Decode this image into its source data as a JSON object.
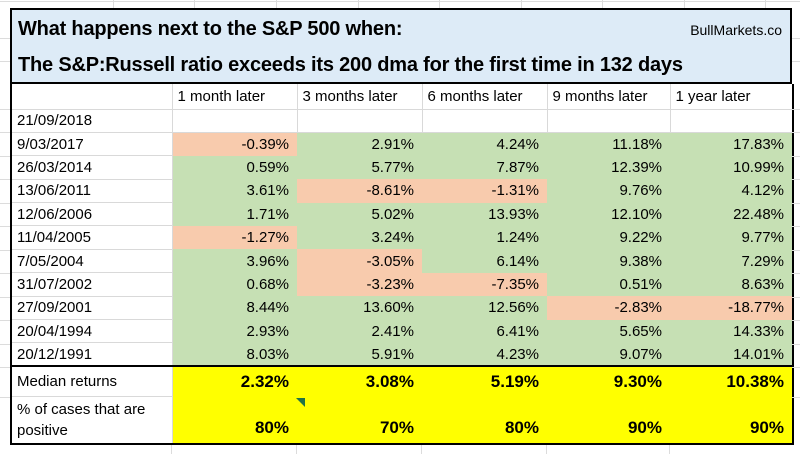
{
  "title": {
    "line1": "What happens next to the S&P 500 when:",
    "line2": "The S&P:Russell ratio exceeds its 200 dma for the first time in 132 days",
    "brand": "BullMarkets.co"
  },
  "chart_data": {
    "type": "table",
    "columns": [
      "1 month later",
      "3 months later",
      "6 months later",
      "9 months later",
      "1 year later"
    ],
    "rows": [
      {
        "date": "21/09/2018",
        "values": [
          "",
          "",
          "",
          "",
          ""
        ]
      },
      {
        "date": "9/03/2017",
        "values": [
          "-0.39%",
          "2.91%",
          "4.24%",
          "11.18%",
          "17.83%"
        ]
      },
      {
        "date": "26/03/2014",
        "values": [
          "0.59%",
          "5.77%",
          "7.87%",
          "12.39%",
          "10.99%"
        ]
      },
      {
        "date": "13/06/2011",
        "values": [
          "3.61%",
          "-8.61%",
          "-1.31%",
          "9.76%",
          "4.12%"
        ]
      },
      {
        "date": "12/06/2006",
        "values": [
          "1.71%",
          "5.02%",
          "13.93%",
          "12.10%",
          "22.48%"
        ]
      },
      {
        "date": "11/04/2005",
        "values": [
          "-1.27%",
          "3.24%",
          "1.24%",
          "9.22%",
          "9.77%"
        ]
      },
      {
        "date": "7/05/2004",
        "values": [
          "3.96%",
          "-3.05%",
          "6.14%",
          "9.38%",
          "7.29%"
        ]
      },
      {
        "date": "31/07/2002",
        "values": [
          "0.68%",
          "-3.23%",
          "-7.35%",
          "0.51%",
          "8.63%"
        ]
      },
      {
        "date": "27/09/2001",
        "values": [
          "8.44%",
          "13.60%",
          "12.56%",
          "-2.83%",
          "-18.77%"
        ]
      },
      {
        "date": "20/04/1994",
        "values": [
          "2.93%",
          "2.41%",
          "6.41%",
          "5.65%",
          "14.33%"
        ]
      },
      {
        "date": "20/12/1991",
        "values": [
          "8.03%",
          "5.91%",
          "4.23%",
          "9.07%",
          "14.01%"
        ]
      }
    ],
    "summary": {
      "median_label": "Median returns",
      "median_values": [
        "2.32%",
        "3.08%",
        "5.19%",
        "9.30%",
        "10.38%"
      ],
      "pct_label": "% of cases that are positive",
      "pct_values": [
        "80%",
        "70%",
        "80%",
        "90%",
        "90%"
      ]
    },
    "legend": {
      "positive_cell": "green fill = positive return",
      "negative_cell": "orange fill = negative return"
    }
  },
  "colors": {
    "positive_fill": "#c6e0b4",
    "negative_fill": "#f8cbad",
    "title_fill": "#ddebf7",
    "summary_fill": "#ffff00",
    "flag_triangle": "#217346"
  }
}
